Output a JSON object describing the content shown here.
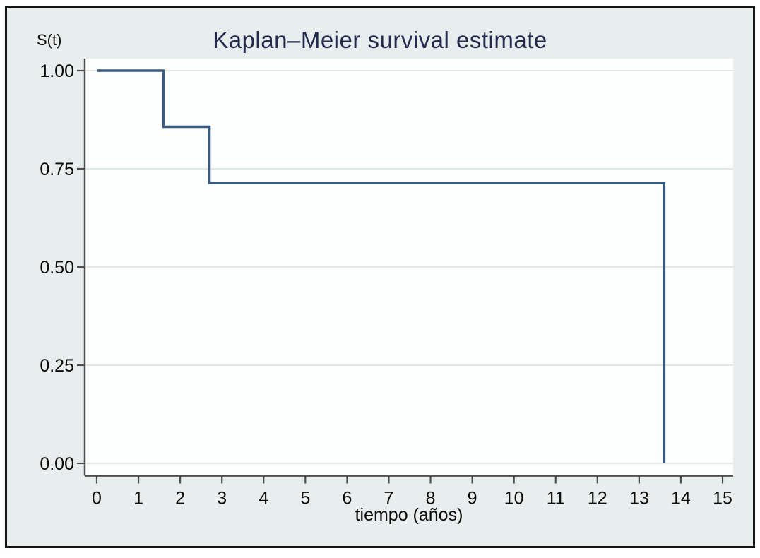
{
  "colors": {
    "curve": "#3a5a7e",
    "frame_background": "#e7eeed",
    "frame_border": "#141414",
    "plot_background": "#fdfefe",
    "gridline": "#e0e8e7",
    "axis_line": "#4d4d4d",
    "axis_text": "#0b0b0b",
    "title_text": "#242b4e"
  },
  "chart_data": {
    "type": "line",
    "subtype": "kaplan-meier-step",
    "title": "Kaplan–Meier survival estimate",
    "xlabel": "tiempo (años)",
    "ylabel": "S(t)",
    "xlim": [
      0,
      15
    ],
    "ylim": [
      0,
      1
    ],
    "xticks": [
      0,
      1,
      2,
      3,
      4,
      5,
      6,
      7,
      8,
      9,
      10,
      11,
      12,
      13,
      14,
      15
    ],
    "ytick_values": [
      0,
      0.25,
      0.5,
      0.75,
      1
    ],
    "ytick_labels": [
      "0.00",
      "0.25",
      "0.50",
      "0.75",
      "1.00"
    ],
    "grid": "horizontal",
    "legend": "none",
    "series": [
      {
        "name": "survival",
        "points": [
          [
            0,
            1.0
          ],
          [
            1.6,
            1.0
          ],
          [
            1.6,
            0.857
          ],
          [
            2.7,
            0.857
          ],
          [
            2.7,
            0.714
          ],
          [
            13.6,
            0.714
          ],
          [
            13.6,
            0.0
          ]
        ]
      }
    ]
  }
}
